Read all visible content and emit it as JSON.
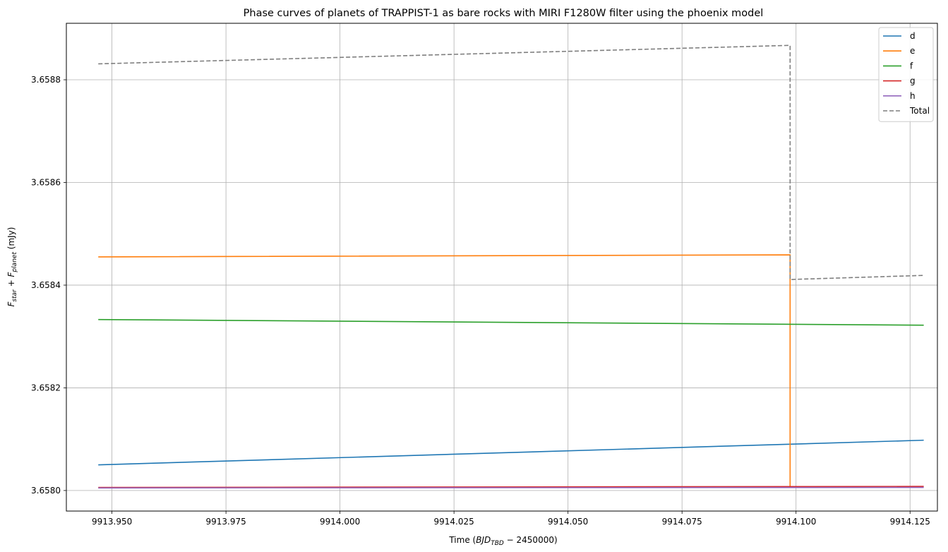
{
  "chart_data": {
    "type": "line",
    "title": "Phase curves of planets of TRAPPIST-1 as bare rocks with MIRI F1280W filter using the phoenix model",
    "xlabel": {
      "prefix": "Time (",
      "base": "BJD",
      "sub": "TBD",
      "suffix": " − 2450000)"
    },
    "ylabel": {
      "f1": "F",
      "f1_sub": "star",
      "plus": " + ",
      "f2": "F",
      "f2_sub": "planet",
      "unit": " (mJy)"
    },
    "xlim": [
      9913.94,
      9914.131
    ],
    "ylim": [
      3.65796,
      3.65891
    ],
    "xticks": [
      9913.95,
      9913.975,
      9914.0,
      9914.025,
      9914.05,
      9914.075,
      9914.1,
      9914.125
    ],
    "xtick_labels": [
      "9913.950",
      "9913.975",
      "9914.000",
      "9914.025",
      "9914.050",
      "9914.075",
      "9914.100",
      "9914.125"
    ],
    "yticks": [
      3.658,
      3.6582,
      3.6584,
      3.6586,
      3.6588
    ],
    "ytick_labels": [
      "3.6580",
      "3.6582",
      "3.6584",
      "3.6586",
      "3.6588"
    ],
    "grid": true,
    "legend_position": "top-right",
    "series": [
      {
        "name": "d",
        "color": "#1f77b4",
        "dashed": false,
        "points": [
          [
            9913.947,
            3.65805
          ],
          [
            9914.128,
            3.658098
          ]
        ]
      },
      {
        "name": "e",
        "color": "#ff7f0e",
        "dashed": false,
        "points": [
          [
            9913.947,
            3.658455
          ],
          [
            9914.0987,
            3.658459
          ],
          [
            9914.0987,
            3.658007
          ]
        ]
      },
      {
        "name": "f",
        "color": "#2ca02c",
        "dashed": false,
        "points": [
          [
            9913.947,
            3.658333
          ],
          [
            9914.128,
            3.658322
          ]
        ]
      },
      {
        "name": "g",
        "color": "#d62728",
        "dashed": false,
        "points": [
          [
            9913.947,
            3.658006
          ],
          [
            9914.128,
            3.658008
          ]
        ]
      },
      {
        "name": "h",
        "color": "#9467bd",
        "dashed": false,
        "points": [
          [
            9913.947,
            3.658005
          ],
          [
            9914.128,
            3.658006
          ]
        ]
      },
      {
        "name": "Total",
        "color": "#7f7f7f",
        "dashed": true,
        "points": [
          [
            9913.947,
            3.658831
          ],
          [
            9914.0987,
            3.658867
          ],
          [
            9914.0987,
            3.658411
          ],
          [
            9914.128,
            3.658419
          ]
        ]
      }
    ]
  }
}
